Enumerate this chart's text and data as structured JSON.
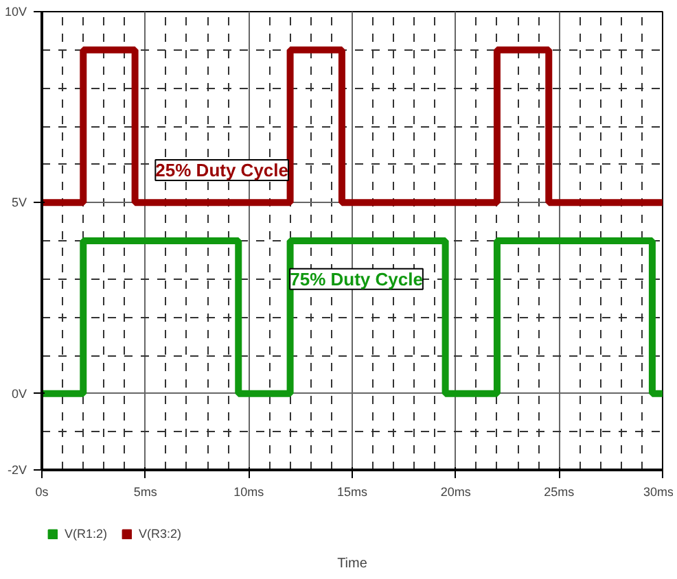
{
  "chart_data": {
    "type": "step",
    "xlabel": "Time",
    "xlim": [
      0,
      30
    ],
    "xticks": [
      {
        "value": 0,
        "label": "0s"
      },
      {
        "value": 5,
        "label": "5ms"
      },
      {
        "value": 10,
        "label": "10ms"
      },
      {
        "value": 15,
        "label": "15ms"
      },
      {
        "value": 20,
        "label": "20ms"
      },
      {
        "value": 25,
        "label": "25ms"
      },
      {
        "value": 30,
        "label": "30ms"
      }
    ],
    "ylim": [
      -2,
      10
    ],
    "yticks": [
      {
        "value": -2,
        "label": "-2V"
      },
      {
        "value": 0,
        "label": "0V"
      },
      {
        "value": 5,
        "label": "5V"
      },
      {
        "value": 10,
        "label": "10V"
      }
    ],
    "grid": true,
    "legend": "bottom",
    "marker": "none",
    "line_style": "solid",
    "series": [
      {
        "name": "V(R1:2)",
        "color": "#109910",
        "x": [
          0,
          2,
          9.5,
          12,
          19.5,
          22,
          29.5,
          30
        ],
        "values": [
          0,
          4,
          0,
          4,
          0,
          4,
          0,
          0
        ]
      },
      {
        "name": "V(R3:2)",
        "color": "#990000",
        "x": [
          0,
          2,
          4.5,
          12,
          14.5,
          22,
          24.5,
          30
        ],
        "values": [
          5,
          9,
          5,
          9,
          5,
          9,
          5,
          5
        ]
      }
    ],
    "annotations": [
      "75% Duty Cycle",
      "25% Duty Cycle"
    ]
  }
}
